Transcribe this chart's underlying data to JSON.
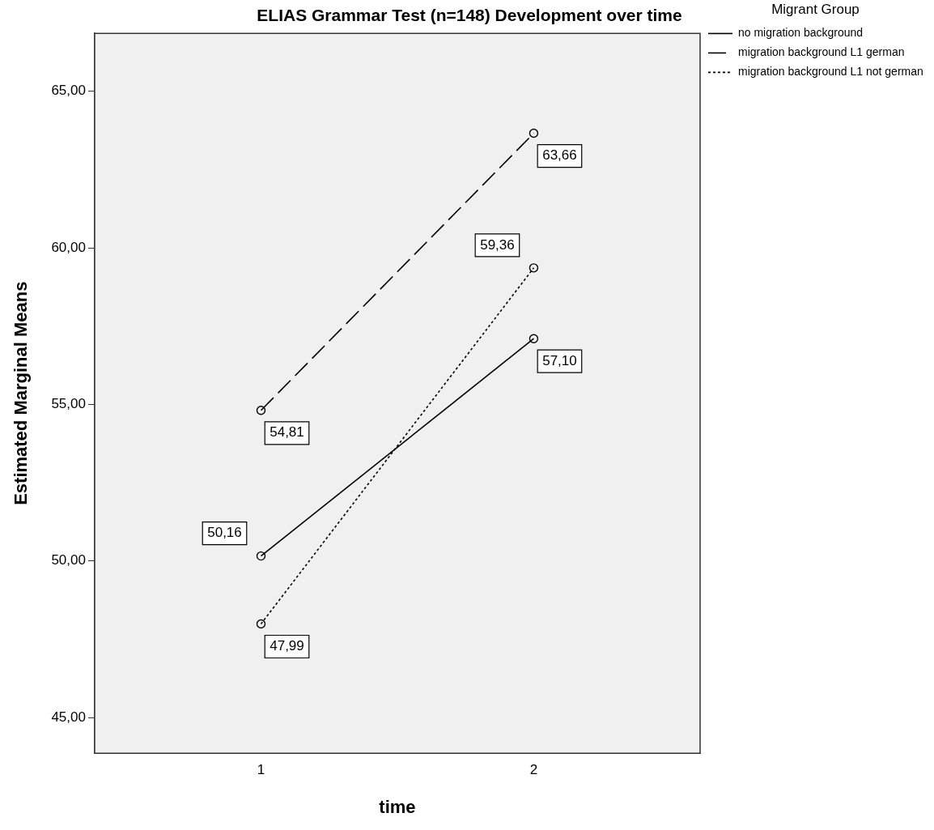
{
  "chart_data": {
    "type": "line",
    "title": "ELIAS Grammar Test (n=148) Development over time",
    "xlabel": "time",
    "ylabel": "Estimated Marginal Means",
    "legend_title": "Migrant Group",
    "legend": "top right",
    "marker": "circle",
    "grid": false,
    "x": [
      1,
      2
    ],
    "xlim": [
      0.39,
      2.61
    ],
    "xticks": [
      1,
      2
    ],
    "ylim": [
      43.86,
      66.85
    ],
    "yticks": [
      {
        "value": 45,
        "label": "45,00"
      },
      {
        "value": 50,
        "label": "50,00"
      },
      {
        "value": 55,
        "label": "55,00"
      },
      {
        "value": 60,
        "label": "60,00"
      },
      {
        "value": 65,
        "label": "65,00"
      }
    ],
    "series": [
      {
        "name": "no migration background",
        "color": "#000000",
        "line_style": "solid",
        "values": [
          50.16,
          57.1
        ],
        "value_labels": [
          "50,16",
          "57,10"
        ]
      },
      {
        "name": "migration background L1 german",
        "color": "#000000",
        "line_style": "dashed",
        "values": [
          54.81,
          63.66
        ],
        "value_labels": [
          "54,81",
          "63,66"
        ]
      },
      {
        "name": "migration background L1 not german",
        "color": "#000000",
        "line_style": "dotted",
        "values": [
          47.99,
          59.36
        ],
        "value_labels": [
          "47,99",
          "59,36"
        ]
      }
    ]
  }
}
